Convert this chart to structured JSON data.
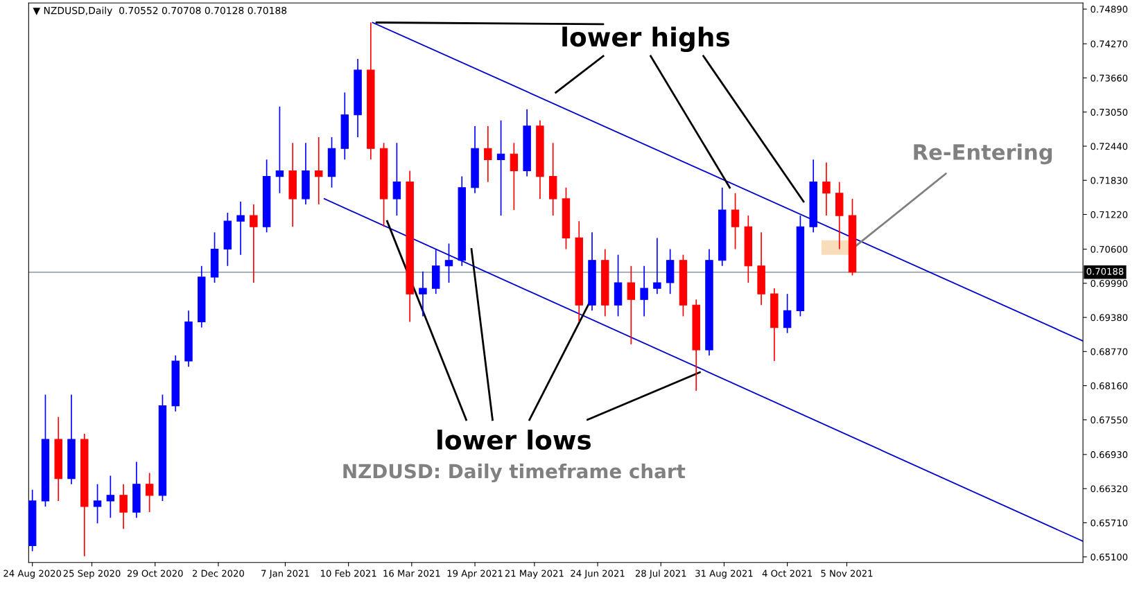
{
  "chart_data": {
    "type": "candlestick",
    "x": [
      "2020-08-24",
      "2020-08-31",
      "2020-09-07",
      "2020-09-14",
      "2020-09-21",
      "2020-09-28",
      "2020-10-05",
      "2020-10-12",
      "2020-10-19",
      "2020-10-26",
      "2020-11-02",
      "2020-11-09",
      "2020-11-16",
      "2020-11-23",
      "2020-11-30",
      "2020-12-07",
      "2020-12-14",
      "2020-12-21",
      "2020-12-28",
      "2021-01-04",
      "2021-01-11",
      "2021-01-18",
      "2021-01-25",
      "2021-02-01",
      "2021-02-08",
      "2021-02-15",
      "2021-02-22",
      "2021-03-01",
      "2021-03-08",
      "2021-03-15",
      "2021-03-22",
      "2021-03-29",
      "2021-04-05",
      "2021-04-12",
      "2021-04-19",
      "2021-04-26",
      "2021-05-03",
      "2021-05-10",
      "2021-05-17",
      "2021-05-24",
      "2021-05-31",
      "2021-06-07",
      "2021-06-14",
      "2021-06-21",
      "2021-06-28",
      "2021-07-05",
      "2021-07-12",
      "2021-07-19",
      "2021-07-26",
      "2021-08-02",
      "2021-08-09",
      "2021-08-16",
      "2021-08-23",
      "2021-08-30",
      "2021-09-06",
      "2021-09-13",
      "2021-09-20",
      "2021-09-27",
      "2021-10-04",
      "2021-10-11",
      "2021-10-18",
      "2021-10-25",
      "2021-11-01",
      "2021-11-08"
    ],
    "ohlc": [
      [
        0.653,
        0.663,
        0.652,
        0.661
      ],
      [
        0.661,
        0.68,
        0.66,
        0.672
      ],
      [
        0.672,
        0.676,
        0.661,
        0.665
      ],
      [
        0.665,
        0.68,
        0.664,
        0.672
      ],
      [
        0.672,
        0.673,
        0.6511,
        0.66
      ],
      [
        0.66,
        0.664,
        0.657,
        0.661
      ],
      [
        0.661,
        0.6655,
        0.658,
        0.662
      ],
      [
        0.662,
        0.664,
        0.656,
        0.659
      ],
      [
        0.659,
        0.668,
        0.658,
        0.664
      ],
      [
        0.664,
        0.666,
        0.659,
        0.662
      ],
      [
        0.662,
        0.68,
        0.661,
        0.678
      ],
      [
        0.678,
        0.687,
        0.677,
        0.686
      ],
      [
        0.686,
        0.695,
        0.685,
        0.693
      ],
      [
        0.693,
        0.703,
        0.692,
        0.701
      ],
      [
        0.701,
        0.709,
        0.7,
        0.706
      ],
      [
        0.706,
        0.7125,
        0.703,
        0.711
      ],
      [
        0.711,
        0.7145,
        0.705,
        0.712
      ],
      [
        0.712,
        0.714,
        0.7,
        0.71
      ],
      [
        0.71,
        0.722,
        0.709,
        0.719
      ],
      [
        0.719,
        0.7315,
        0.716,
        0.72
      ],
      [
        0.72,
        0.725,
        0.71,
        0.715
      ],
      [
        0.715,
        0.725,
        0.714,
        0.72
      ],
      [
        0.72,
        0.726,
        0.714,
        0.719
      ],
      [
        0.719,
        0.726,
        0.717,
        0.724
      ],
      [
        0.724,
        0.734,
        0.722,
        0.73
      ],
      [
        0.73,
        0.74,
        0.726,
        0.738
      ],
      [
        0.738,
        0.7465,
        0.722,
        0.724
      ],
      [
        0.724,
        0.725,
        0.71,
        0.715
      ],
      [
        0.715,
        0.725,
        0.712,
        0.718
      ],
      [
        0.718,
        0.72,
        0.693,
        0.698
      ],
      [
        0.698,
        0.702,
        0.694,
        0.699
      ],
      [
        0.699,
        0.706,
        0.698,
        0.703
      ],
      [
        0.703,
        0.707,
        0.7,
        0.704
      ],
      [
        0.704,
        0.719,
        0.703,
        0.717
      ],
      [
        0.717,
        0.728,
        0.716,
        0.724
      ],
      [
        0.724,
        0.728,
        0.718,
        0.722
      ],
      [
        0.722,
        0.729,
        0.712,
        0.723
      ],
      [
        0.723,
        0.725,
        0.713,
        0.72
      ],
      [
        0.72,
        0.731,
        0.719,
        0.728
      ],
      [
        0.728,
        0.729,
        0.715,
        0.719
      ],
      [
        0.719,
        0.725,
        0.712,
        0.715
      ],
      [
        0.715,
        0.717,
        0.706,
        0.708
      ],
      [
        0.708,
        0.711,
        0.693,
        0.696
      ],
      [
        0.696,
        0.709,
        0.695,
        0.704
      ],
      [
        0.704,
        0.706,
        0.694,
        0.696
      ],
      [
        0.696,
        0.705,
        0.694,
        0.7
      ],
      [
        0.7,
        0.703,
        0.689,
        0.697
      ],
      [
        0.697,
        0.703,
        0.694,
        0.699
      ],
      [
        0.699,
        0.708,
        0.698,
        0.7
      ],
      [
        0.7,
        0.706,
        0.698,
        0.704
      ],
      [
        0.704,
        0.705,
        0.694,
        0.696
      ],
      [
        0.696,
        0.697,
        0.6807,
        0.688
      ],
      [
        0.688,
        0.706,
        0.687,
        0.704
      ],
      [
        0.704,
        0.717,
        0.703,
        0.713
      ],
      [
        0.713,
        0.716,
        0.706,
        0.71
      ],
      [
        0.71,
        0.712,
        0.7,
        0.703
      ],
      [
        0.703,
        0.709,
        0.696,
        0.698
      ],
      [
        0.698,
        0.699,
        0.686,
        0.692
      ],
      [
        0.692,
        0.698,
        0.691,
        0.695
      ],
      [
        0.695,
        0.712,
        0.694,
        0.71
      ],
      [
        0.71,
        0.722,
        0.709,
        0.718
      ],
      [
        0.718,
        0.7215,
        0.712,
        0.716
      ],
      [
        0.716,
        0.718,
        0.706,
        0.712
      ],
      [
        0.712,
        0.715,
        0.7013,
        0.70188
      ]
    ],
    "colors": [
      "#0000ff",
      "#0000ff",
      "#ff0000",
      "#0000ff",
      "#ff0000",
      "#0000ff",
      "#0000ff",
      "#ff0000",
      "#0000ff",
      "#ff0000",
      "#0000ff",
      "#0000ff",
      "#0000ff",
      "#0000ff",
      "#0000ff",
      "#0000ff",
      "#0000ff",
      "#ff0000",
      "#0000ff",
      "#0000ff",
      "#ff0000",
      "#0000ff",
      "#ff0000",
      "#0000ff",
      "#0000ff",
      "#0000ff",
      "#ff0000",
      "#ff0000",
      "#0000ff",
      "#ff0000",
      "#0000ff",
      "#0000ff",
      "#0000ff",
      "#0000ff",
      "#0000ff",
      "#ff0000",
      "#0000ff",
      "#ff0000",
      "#0000ff",
      "#ff0000",
      "#ff0000",
      "#ff0000",
      "#ff0000",
      "#0000ff",
      "#ff0000",
      "#0000ff",
      "#ff0000",
      "#0000ff",
      "#0000ff",
      "#0000ff",
      "#ff0000",
      "#ff0000",
      "#0000ff",
      "#0000ff",
      "#ff0000",
      "#ff0000",
      "#ff0000",
      "#ff0000",
      "#0000ff",
      "#0000ff",
      "#0000ff",
      "#ff0000",
      "#ff0000",
      "#ff0000"
    ],
    "series": [
      {
        "type": "line",
        "color": "#0000cd",
        "x": [
          "2021-02-23",
          "2022-03-12"
        ],
        "values": [
          0.7465,
          0.6896
        ]
      },
      {
        "type": "line",
        "color": "#0000cd",
        "x": [
          "2021-01-28",
          "2022-03-12"
        ],
        "values": [
          0.715,
          0.6538
        ]
      }
    ],
    "xlim": [
      "2020-08-22",
      "2022-03-12"
    ],
    "xticks": [
      {
        "value": "2020-08-24",
        "label": "24 Aug 2020"
      },
      {
        "value": "2020-09-25",
        "label": "25 Sep 2020"
      },
      {
        "value": "2020-10-29",
        "label": "29 Oct 2020"
      },
      {
        "value": "2020-12-02",
        "label": "2 Dec 2020"
      },
      {
        "value": "2021-01-07",
        "label": "7 Jan 2021"
      },
      {
        "value": "2021-02-10",
        "label": "10 Feb 2021"
      },
      {
        "value": "2021-03-16",
        "label": "16 Mar 2021"
      },
      {
        "value": "2021-04-19",
        "label": "19 Apr 2021"
      },
      {
        "value": "2021-05-21",
        "label": "21 May 2021"
      },
      {
        "value": "2021-06-24",
        "label": "24 Jun 2021"
      },
      {
        "value": "2021-07-28",
        "label": "28 Jul 2021"
      },
      {
        "value": "2021-08-31",
        "label": "31 Aug 2021"
      },
      {
        "value": "2021-10-04",
        "label": "4 Oct 2021"
      },
      {
        "value": "2021-11-05",
        "label": "5 Nov 2021"
      }
    ],
    "ylim": [
      0.65,
      0.75
    ],
    "yticks": [
      {
        "value": 0.651,
        "label": "0.65100"
      },
      {
        "value": 0.6571,
        "label": "0.65710"
      },
      {
        "value": 0.6632,
        "label": "0.66320"
      },
      {
        "value": 0.6693,
        "label": "0.66930"
      },
      {
        "value": 0.6755,
        "label": "0.67550"
      },
      {
        "value": 0.6816,
        "label": "0.68160"
      },
      {
        "value": 0.6877,
        "label": "0.68770"
      },
      {
        "value": 0.6938,
        "label": "0.69380"
      },
      {
        "value": 0.6999,
        "label": "0.69990"
      },
      {
        "value": 0.706,
        "label": "0.70600"
      },
      {
        "value": 0.7122,
        "label": "0.71220"
      },
      {
        "value": 0.7183,
        "label": "0.71830"
      },
      {
        "value": 0.7244,
        "label": "0.72440"
      },
      {
        "value": 0.7305,
        "label": "0.73050"
      },
      {
        "value": 0.7366,
        "label": "0.73660"
      },
      {
        "value": 0.7427,
        "label": "0.74270"
      },
      {
        "value": 0.7489,
        "label": "0.74890"
      }
    ],
    "ref_lines": [
      {
        "axis": "y",
        "value": 0.70188,
        "label": "0.70188",
        "color": "#708090"
      }
    ],
    "annotations": [
      "▼ NZDUSD,Daily  0.70552 0.70708 0.70128 0.70188",
      {
        "text": "lower highs",
        "x": "2021-02-25",
        "y": 0.7465
      },
      {
        "text": "lower lows",
        "x": "2021-08-18",
        "y": 0.684
      },
      {
        "text": "Re-Entering",
        "x": "2021-11-10",
        "y": 0.7066
      },
      "NZDUSD: Daily timeframe chart"
    ]
  }
}
